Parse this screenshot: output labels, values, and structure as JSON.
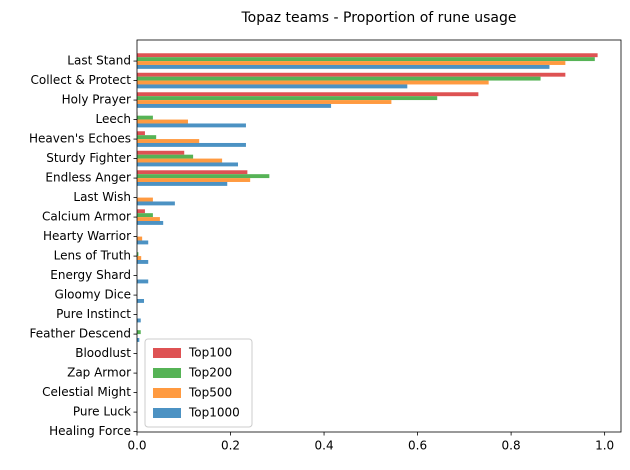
{
  "chart_data": {
    "type": "barh",
    "title": "Topaz teams - Proportion of rune usage",
    "categories": [
      "Last Stand",
      "Collect & Protect",
      "Holy Prayer",
      "Leech",
      "Heaven's Echoes",
      "Sturdy Fighter",
      "Endless Anger",
      "Last Wish",
      "Calcium Armor",
      "Hearty Warrior",
      "Lens of Truth",
      "Energy Shard",
      "Gloomy Dice",
      "Pure Instinct",
      "Feather Descend",
      "Bloodlust",
      "Zap Armor",
      "Celestial Might",
      "Pure Luck",
      "Healing Force"
    ],
    "series": [
      {
        "name": "Top100",
        "color": "#de5253",
        "values": [
          0.985,
          0.916,
          0.73,
          0.001,
          0.017,
          0.101,
          0.236,
          0,
          0.017,
          0,
          0,
          0,
          0,
          0,
          0,
          0,
          0,
          0,
          0,
          0
        ]
      },
      {
        "name": "Top200",
        "color": "#56b356",
        "values": [
          0.979,
          0.863,
          0.642,
          0.034,
          0.041,
          0.12,
          0.283,
          0,
          0.034,
          0,
          0.003,
          0,
          0,
          0,
          0.008,
          0,
          0,
          0,
          0,
          0
        ]
      },
      {
        "name": "Top500",
        "color": "#ff9a40",
        "values": [
          0.916,
          0.752,
          0.544,
          0.109,
          0.133,
          0.182,
          0.242,
          0.034,
          0.049,
          0.011,
          0.009,
          0,
          0,
          0,
          0,
          0,
          0,
          0,
          0,
          0
        ]
      },
      {
        "name": "Top1000",
        "color": "#4c92c3",
        "values": [
          0.882,
          0.578,
          0.415,
          0.233,
          0.233,
          0.216,
          0.193,
          0.081,
          0.056,
          0.024,
          0.024,
          0.024,
          0.015,
          0.008,
          0.005,
          0,
          0,
          0,
          0,
          0
        ]
      }
    ],
    "xlim": [
      0,
      1.035
    ],
    "xticks": [
      {
        "value": 0,
        "label": "0.0"
      },
      {
        "value": 0.2,
        "label": "0.2"
      },
      {
        "value": 0.4,
        "label": "0.4"
      },
      {
        "value": 0.6,
        "label": "0.6"
      },
      {
        "value": 0.8,
        "label": "0.8"
      },
      {
        "value": 1,
        "label": "1.0"
      }
    ],
    "grid": false,
    "legend": "lower left"
  }
}
